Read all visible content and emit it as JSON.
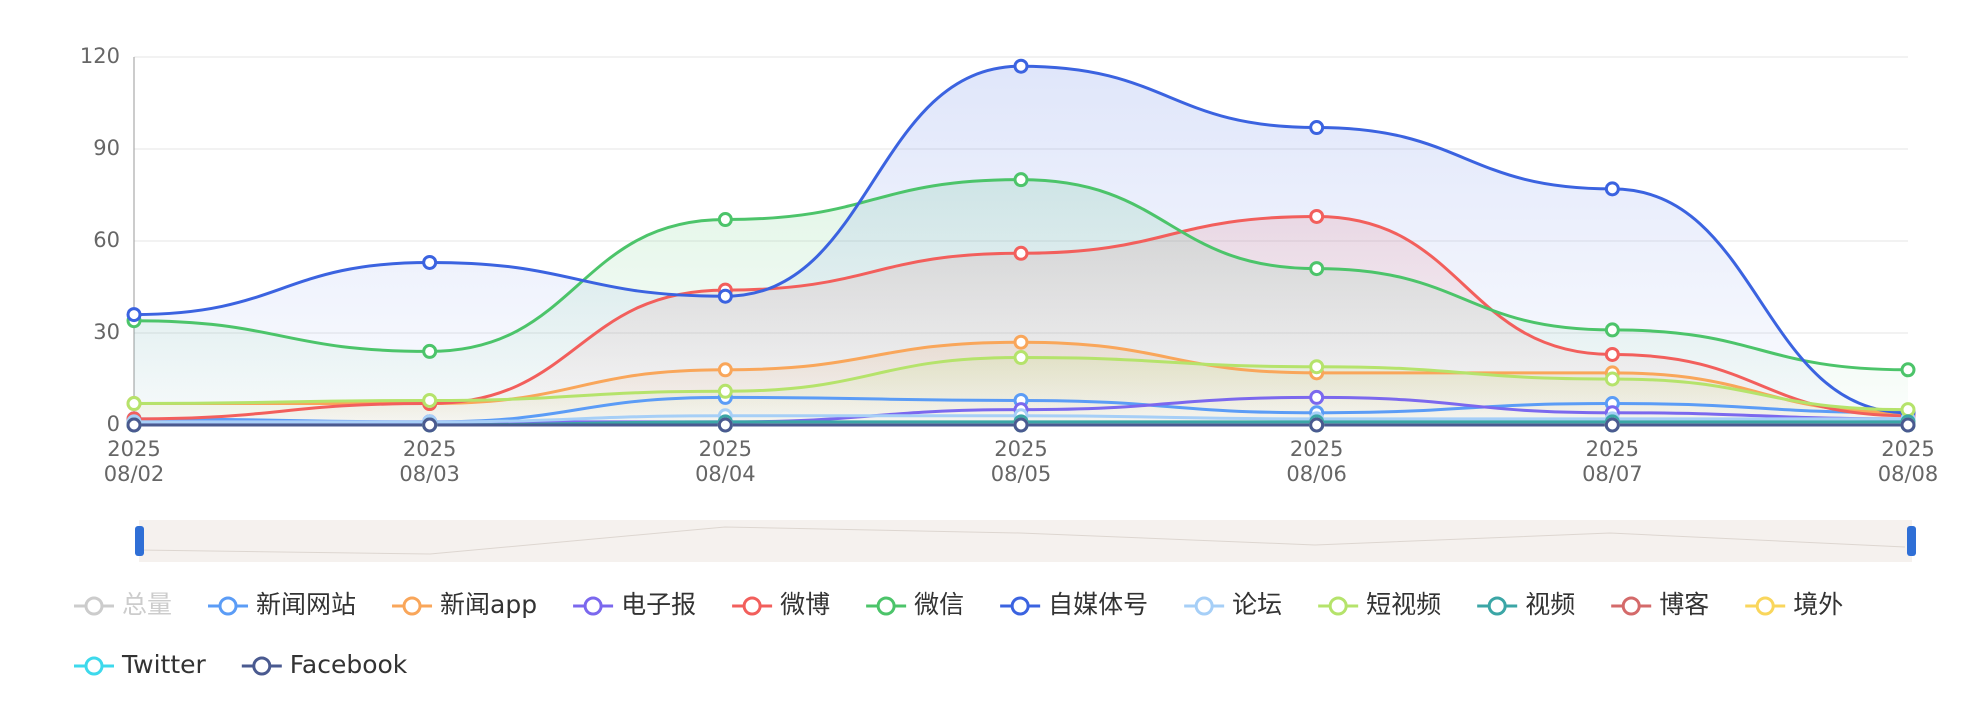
{
  "chart_data": {
    "type": "line",
    "x": [
      "2025\n08/02",
      "2025\n08/03",
      "2025\n08/04",
      "2025\n08/05",
      "2025\n08/06",
      "2025\n08/07",
      "2025\n08/08"
    ],
    "ylim": [
      0,
      120
    ],
    "yticks": [
      0,
      30,
      60,
      90,
      120
    ],
    "grid": true,
    "smooth": true,
    "legend": "bottom",
    "series": [
      {
        "name": "总量",
        "color": "#cccccc",
        "visible": false,
        "values": [
          null,
          null,
          null,
          null,
          null,
          null,
          null
        ]
      },
      {
        "name": "新闻网站",
        "color": "#5b9cf6",
        "values": [
          2,
          1,
          9,
          8,
          4,
          7,
          4
        ]
      },
      {
        "name": "新闻app",
        "color": "#f9a65a",
        "area": true,
        "values": [
          7,
          7,
          18,
          27,
          17,
          17,
          4
        ]
      },
      {
        "name": "电子报",
        "color": "#7b68ee",
        "values": [
          1,
          1,
          1,
          5,
          9,
          4,
          2
        ]
      },
      {
        "name": "微博",
        "color": "#f25f5c",
        "area": true,
        "values": [
          2,
          7,
          44,
          56,
          68,
          23,
          3
        ]
      },
      {
        "name": "微信",
        "color": "#4cc46a",
        "area": true,
        "values": [
          34,
          24,
          67,
          80,
          51,
          31,
          18
        ]
      },
      {
        "name": "自媒体号",
        "color": "#3b63e0",
        "area": true,
        "values": [
          36,
          53,
          42,
          117,
          97,
          77,
          4
        ]
      },
      {
        "name": "论坛",
        "color": "#a6cff7",
        "values": [
          1,
          1,
          3,
          3,
          2,
          2,
          2
        ]
      },
      {
        "name": "短视频",
        "color": "#b5e36b",
        "area": true,
        "values": [
          7,
          8,
          11,
          22,
          19,
          15,
          5
        ]
      },
      {
        "name": "视频",
        "color": "#3ba6a6",
        "values": [
          0,
          0,
          1,
          1,
          1,
          1,
          1
        ]
      },
      {
        "name": "博客",
        "color": "#d46a6a",
        "values": [
          0,
          0,
          0,
          0,
          0,
          0,
          0
        ]
      },
      {
        "name": "境外",
        "color": "#f9d65c",
        "values": [
          0,
          0,
          0,
          0,
          0,
          0,
          0
        ]
      },
      {
        "name": "Twitter",
        "color": "#3dd9ec",
        "values": [
          0,
          0,
          0,
          0,
          0,
          0,
          0
        ]
      },
      {
        "name": "Facebook",
        "color": "#4a5a90",
        "values": [
          0,
          0,
          0,
          0,
          0,
          0,
          0
        ]
      }
    ]
  }
}
